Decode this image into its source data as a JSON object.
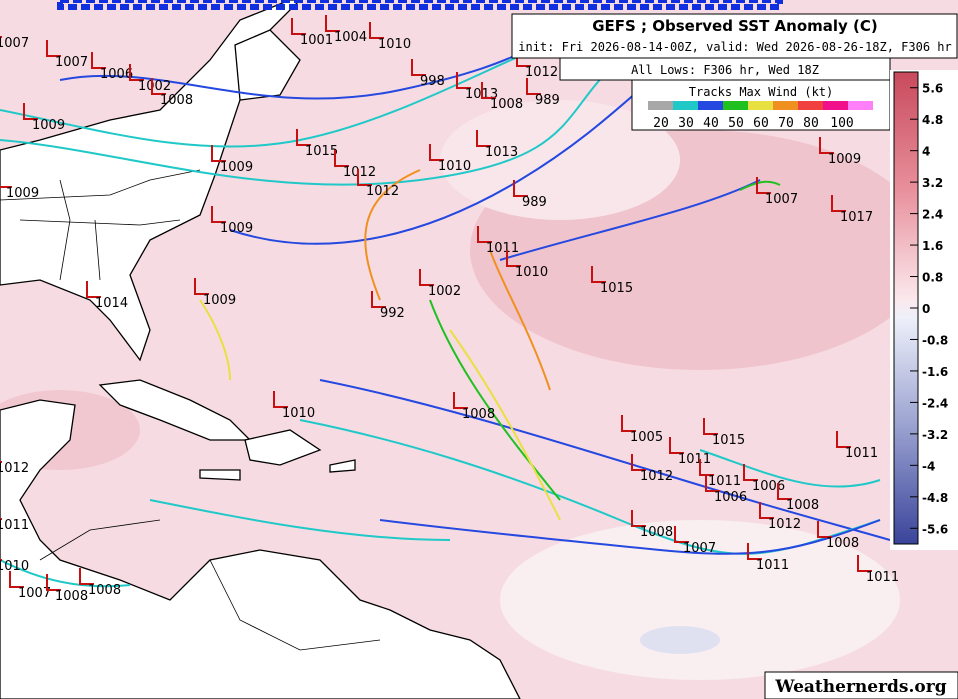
{
  "header": {
    "title": "GEFS ; Observed SST Anomaly (C)",
    "subtitle": "init: Fri 2026-08-14-00Z, valid: Wed 2026-08-26-18Z, F306 hr",
    "lows_title": "All Lows: F306 hr, Wed 18Z"
  },
  "legend": {
    "title": "Tracks Max Wind (kt)",
    "labels": [
      20,
      30,
      40,
      50,
      60,
      70,
      80,
      100
    ],
    "colors": [
      "#a8a8a8",
      "#20c8c8",
      "#2448e0",
      "#20c020",
      "#e8e040",
      "#f09020",
      "#f04040",
      "#f0108c",
      "#ff80f8"
    ]
  },
  "colorbar": {
    "lim": [
      -6,
      6
    ],
    "ticks": [
      5.6,
      4.8,
      4,
      3.2,
      2.4,
      1.6,
      0.8,
      0,
      -0.8,
      -1.6,
      -2.4,
      -3.2,
      -4,
      -4.8,
      -5.6
    ]
  },
  "lows": [
    "1007",
    "1001",
    "1004",
    "1010",
    "1007",
    "1006",
    "1002",
    "1008",
    "1009",
    "998",
    "1013",
    "1008",
    "989",
    "1012",
    "1015",
    "1013",
    "1010",
    "1009",
    "1012",
    "1012",
    "1009",
    "989",
    "1009",
    "1011",
    "1010",
    "1002",
    "1009",
    "992",
    "1014",
    "1015",
    "1007",
    "1009",
    "1017",
    "1010",
    "1008",
    "1005",
    "1015",
    "1011",
    "1012",
    "1011",
    "1006",
    "1006",
    "1008",
    "1012",
    "1008",
    "1007",
    "1008",
    "1011",
    "1011",
    "1011",
    "1012",
    "1011",
    "1010",
    "1007",
    "1008",
    "1008"
  ],
  "watermark": "Weathernerds.org"
}
